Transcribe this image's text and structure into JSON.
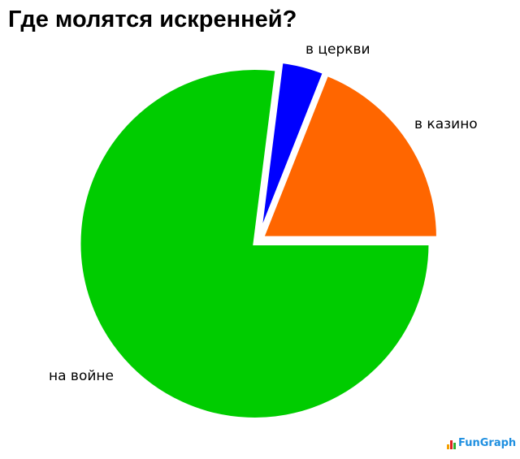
{
  "chart_data": {
    "type": "pie",
    "title": "Где молятся искренней?",
    "slices": [
      {
        "label": "в казино",
        "value": 19,
        "color": "#ff6600"
      },
      {
        "label": "в церкви",
        "value": 4,
        "color": "#0000ff"
      },
      {
        "label": "на войне",
        "value": 77,
        "color": "#00cc00"
      }
    ],
    "legend": "none"
  },
  "logo": {
    "text": "FunGraph"
  }
}
